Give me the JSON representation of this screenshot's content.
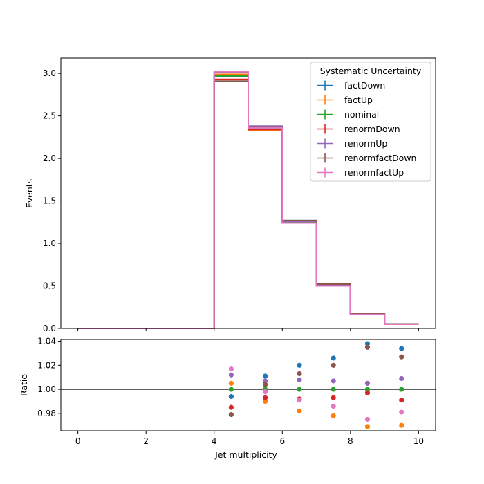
{
  "chart_data": {
    "type": "step-histogram-with-ratio",
    "legend_title": "Systematic Uncertainty",
    "legend_position": "top-right",
    "bin_edges": [
      0,
      1,
      2,
      3,
      4,
      5,
      6,
      7,
      8,
      9,
      10
    ],
    "top": {
      "ylabel": "Events",
      "ylim": [
        0,
        3.18
      ],
      "yticks": [
        "0.0",
        "0.5",
        "1.0",
        "1.5",
        "2.0",
        "2.5",
        "3.0"
      ],
      "ytick_values": [
        0,
        0.5,
        1.0,
        1.5,
        2.0,
        2.5,
        3.0
      ],
      "series": [
        {
          "name": "factDown",
          "color": "#1f77b4",
          "values": [
            0,
            0,
            0,
            0,
            2.96,
            2.38,
            1.27,
            0.52,
            0.175,
            0.052
          ]
        },
        {
          "name": "factUp",
          "color": "#ff7f0e",
          "values": [
            0,
            0,
            0,
            0,
            2.99,
            2.33,
            1.24,
            0.5,
            0.164,
            0.049
          ]
        },
        {
          "name": "nominal",
          "color": "#2ca02c",
          "values": [
            0,
            0,
            0,
            0,
            2.97,
            2.36,
            1.25,
            0.51,
            0.168,
            0.05
          ]
        },
        {
          "name": "renormDown",
          "color": "#d62728",
          "values": [
            0,
            0,
            0,
            0,
            2.93,
            2.34,
            1.24,
            0.5,
            0.167,
            0.0496
          ]
        },
        {
          "name": "renormUp",
          "color": "#9467bd",
          "values": [
            0,
            0,
            0,
            0,
            3.01,
            2.38,
            1.26,
            0.51,
            0.169,
            0.0505
          ]
        },
        {
          "name": "renormfactDown",
          "color": "#8c564b",
          "values": [
            0,
            0,
            0,
            0,
            2.91,
            2.37,
            1.27,
            0.52,
            0.174,
            0.0514
          ]
        },
        {
          "name": "renormfactUp",
          "color": "#e377c2",
          "values": [
            0,
            0,
            0,
            0,
            3.02,
            2.36,
            1.24,
            0.5,
            0.164,
            0.049
          ]
        }
      ]
    },
    "bottom": {
      "xlabel": "Jet multiplicity",
      "ylabel": "Ratio",
      "xlim": [
        -0.5,
        10.5
      ],
      "ylim": [
        0.9655,
        1.0415
      ],
      "xticks": [
        "0",
        "2",
        "4",
        "6",
        "8",
        "10"
      ],
      "xtick_values": [
        0,
        2,
        4,
        6,
        8,
        10
      ],
      "yticks": [
        "0.98",
        "1.00",
        "1.02",
        "1.04"
      ],
      "ytick_values": [
        0.98,
        1.0,
        1.02,
        1.04
      ],
      "reference_line": 1.0,
      "x": [
        4.5,
        5.5,
        6.5,
        7.5,
        8.5,
        9.5
      ],
      "series": [
        {
          "name": "factDown",
          "color": "#1f77b4",
          "values": [
            0.994,
            1.011,
            1.02,
            1.026,
            1.038,
            1.034
          ]
        },
        {
          "name": "factUp",
          "color": "#ff7f0e",
          "values": [
            1.005,
            0.99,
            0.982,
            0.978,
            0.969,
            0.97
          ]
        },
        {
          "name": "nominal",
          "color": "#2ca02c",
          "values": [
            1.0,
            1.0,
            1.0,
            1.0,
            1.0,
            1.0
          ]
        },
        {
          "name": "renormDown",
          "color": "#d62728",
          "values": [
            0.985,
            0.993,
            0.992,
            0.993,
            0.997,
            0.991
          ]
        },
        {
          "name": "renormUp",
          "color": "#9467bd",
          "values": [
            1.012,
            1.007,
            1.008,
            1.007,
            1.005,
            1.009
          ]
        },
        {
          "name": "renormfactDown",
          "color": "#8c564b",
          "values": [
            0.979,
            1.004,
            1.013,
            1.02,
            1.035,
            1.027
          ]
        },
        {
          "name": "renormfactUp",
          "color": "#e377c2",
          "values": [
            1.017,
            0.998,
            0.991,
            0.986,
            0.975,
            0.981
          ]
        }
      ]
    }
  }
}
